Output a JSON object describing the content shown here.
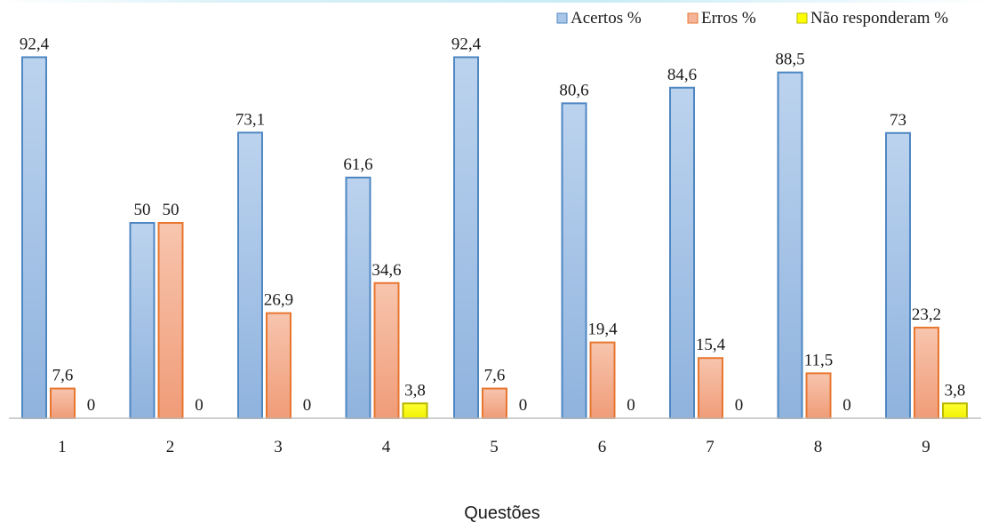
{
  "chart_data": {
    "type": "bar",
    "title": "",
    "xlabel": "Questões",
    "ylabel": "",
    "categories": [
      "1",
      "2",
      "3",
      "4",
      "5",
      "6",
      "7",
      "8",
      "9"
    ],
    "ylim": [
      0,
      100
    ],
    "grid": false,
    "legend_position": "top-right",
    "series": [
      {
        "name": "Acertos %",
        "color": "#a9c6e8",
        "stroke": "#4f87c3",
        "values": [
          92.4,
          50,
          73.1,
          61.6,
          92.4,
          80.6,
          84.6,
          88.5,
          73
        ],
        "labels": [
          "92,4",
          "50",
          "73,1",
          "61,6",
          "92,4",
          "80,6",
          "84,6",
          "88,5",
          "73"
        ]
      },
      {
        "name": "Erros %",
        "color": "#f4b49a",
        "stroke": "#e8762f",
        "values": [
          7.6,
          50,
          26.9,
          34.6,
          7.6,
          19.4,
          15.4,
          11.5,
          23.2
        ],
        "labels": [
          "7,6",
          "50",
          "26,9",
          "34,6",
          "7,6",
          "19,4",
          "15,4",
          "11,5",
          "23,2"
        ]
      },
      {
        "name": "Não responderam %",
        "color": "#ffff00",
        "stroke": "#b8b800",
        "values": [
          0,
          0,
          0,
          3.8,
          0,
          0,
          0,
          0,
          3.8
        ],
        "labels": [
          "0",
          "0",
          "0",
          "3,8",
          "0",
          "0",
          "0",
          "0",
          "3,8"
        ]
      }
    ]
  }
}
